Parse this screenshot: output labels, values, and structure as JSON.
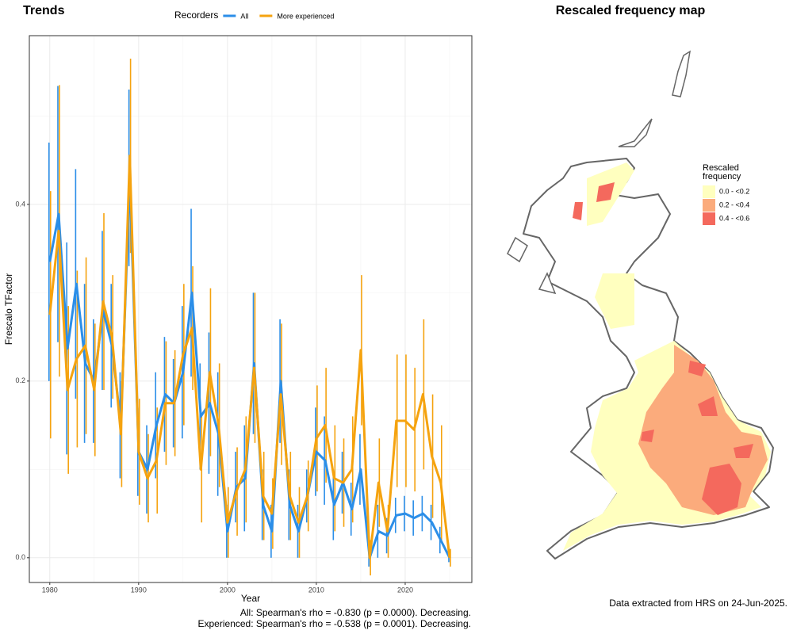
{
  "chart_data": {
    "type": "line",
    "title": "Trends",
    "legend_title": "Recorders",
    "legend": "top",
    "xlabel": "Year",
    "ylabel": "Frescalo TFactor",
    "x": [
      1980,
      1981,
      1982,
      1983,
      1984,
      1985,
      1986,
      1987,
      1988,
      1989,
      1990,
      1991,
      1992,
      1993,
      1994,
      1995,
      1996,
      1997,
      1998,
      1999,
      2000,
      2001,
      2002,
      2003,
      2004,
      2005,
      2006,
      2007,
      2008,
      2009,
      2010,
      2011,
      2012,
      2013,
      2014,
      2015,
      2016,
      2017,
      2018,
      2019,
      2020,
      2021,
      2022,
      2023,
      2024,
      2025
    ],
    "series": [
      {
        "name": "All",
        "color": "#2b8ee8",
        "values": [
          0.335,
          0.389,
          0.237,
          0.31,
          0.22,
          0.2,
          0.28,
          0.24,
          0.15,
          0.43,
          0.12,
          0.1,
          0.15,
          0.185,
          0.175,
          0.21,
          0.3,
          0.16,
          0.175,
          0.14,
          0.03,
          0.08,
          0.09,
          0.22,
          0.06,
          0.03,
          0.2,
          0.06,
          0.03,
          0.07,
          0.12,
          0.11,
          0.06,
          0.085,
          0.055,
          0.1,
          0.0,
          0.03,
          0.025,
          0.048,
          0.05,
          0.045,
          0.05,
          0.04,
          0.02,
          0.0
        ],
        "errors": [
          0.135,
          0.145,
          0.12,
          0.13,
          0.09,
          0.07,
          0.09,
          0.07,
          0.06,
          0.1,
          0.05,
          0.05,
          0.06,
          0.065,
          0.05,
          0.075,
          0.095,
          0.06,
          0.08,
          0.07,
          0.03,
          0.04,
          0.06,
          0.08,
          0.04,
          0.03,
          0.07,
          0.04,
          0.03,
          0.03,
          0.05,
          0.05,
          0.04,
          0.035,
          0.03,
          0.04,
          0.01,
          0.03,
          0.02,
          0.02,
          0.02,
          0.02,
          0.02,
          0.02,
          0.015,
          0.005
        ]
      },
      {
        "name": "More experienced",
        "color": "#f5a30f",
        "values": [
          0.275,
          0.37,
          0.19,
          0.225,
          0.24,
          0.19,
          0.29,
          0.25,
          0.14,
          0.455,
          0.12,
          0.09,
          0.11,
          0.175,
          0.175,
          0.23,
          0.26,
          0.1,
          0.21,
          0.15,
          0.04,
          0.075,
          0.1,
          0.215,
          0.07,
          0.05,
          0.185,
          0.07,
          0.04,
          0.07,
          0.135,
          0.15,
          0.09,
          0.085,
          0.1,
          0.235,
          0.0,
          0.085,
          0.03,
          0.155,
          0.155,
          0.145,
          0.185,
          0.115,
          0.085,
          0.0
        ],
        "errors": [
          0.14,
          0.165,
          0.095,
          0.1,
          0.1,
          0.075,
          0.1,
          0.07,
          0.06,
          0.11,
          0.06,
          0.05,
          0.06,
          0.07,
          0.06,
          0.08,
          0.07,
          0.06,
          0.095,
          0.07,
          0.04,
          0.05,
          0.06,
          0.085,
          0.05,
          0.04,
          0.08,
          0.05,
          0.04,
          0.04,
          0.06,
          0.065,
          0.06,
          0.05,
          0.06,
          0.085,
          0.02,
          0.05,
          0.03,
          0.075,
          0.075,
          0.07,
          0.085,
          0.07,
          0.065,
          0.01
        ]
      }
    ],
    "xlim": [
      1977.7,
      2027.5
    ],
    "xticks": [
      1980,
      1990,
      2000,
      2010,
      2020
    ],
    "ylim": [
      -0.028,
      0.591
    ],
    "yticks": [
      {
        "value": 0,
        "label": "0.0"
      },
      0.2,
      0.4
    ],
    "grid": true,
    "annotations": [
      "All: Spearman's rho = -0.830 (p = 0.0000). Decreasing.",
      "Experienced: Spearman's rho = -0.538 (p = 0.0001). Decreasing."
    ]
  },
  "map": {
    "title": "Rescaled frequency map",
    "legend_title": [
      "Rescaled",
      "frequency"
    ],
    "legend": [
      {
        "label": "0.0 - <0.2",
        "color": "#ffffbf"
      },
      {
        "label": "0.2 - <0.4",
        "color": "#fbab7c"
      },
      {
        "label": "0.4 - <0.6",
        "color": "#f4695d"
      }
    ],
    "footnote": "Data extracted from HRS on 24-Jun-2025."
  }
}
